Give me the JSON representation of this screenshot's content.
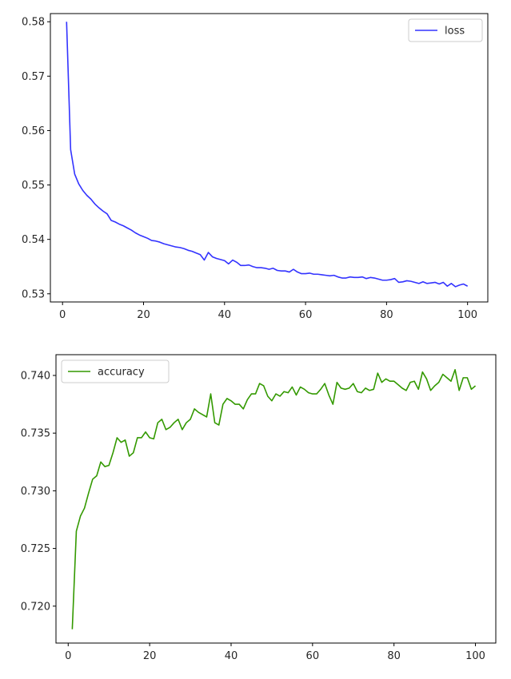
{
  "chart_data": [
    {
      "type": "line",
      "xlim": [
        -3,
        105
      ],
      "ylim": [
        0.5285,
        0.5815
      ],
      "xticks": [
        0,
        20,
        40,
        60,
        80,
        100
      ],
      "xtick_labels": [
        "0",
        "20",
        "40",
        "60",
        "80",
        "100"
      ],
      "yticks": [
        0.53,
        0.54,
        0.55,
        0.56,
        0.57,
        0.58
      ],
      "ytick_labels": [
        "0.53",
        "0.54",
        "0.55",
        "0.56",
        "0.57",
        "0.58"
      ],
      "grid": false,
      "legend": "upper right",
      "series": [
        {
          "name": "loss",
          "color": "#3333ff",
          "x": [
            1,
            2,
            3,
            4,
            5,
            6,
            7,
            8,
            9,
            10,
            11,
            12,
            13,
            14,
            15,
            16,
            17,
            18,
            19,
            20,
            21,
            22,
            23,
            24,
            25,
            26,
            27,
            28,
            29,
            30,
            31,
            32,
            33,
            34,
            35,
            36,
            37,
            38,
            39,
            40,
            41,
            42,
            43,
            44,
            45,
            46,
            47,
            48,
            49,
            50,
            51,
            52,
            53,
            54,
            55,
            56,
            57,
            58,
            59,
            60,
            61,
            62,
            63,
            64,
            65,
            66,
            67,
            68,
            69,
            70,
            71,
            72,
            73,
            74,
            75,
            76,
            77,
            78,
            79,
            80,
            81,
            82,
            83,
            84,
            85,
            86,
            87,
            88,
            89,
            90,
            91,
            92,
            93,
            94,
            95,
            96,
            97,
            98,
            99,
            100
          ],
          "y": [
            0.58,
            0.5565,
            0.552,
            0.5502,
            0.549,
            0.5481,
            0.5474,
            0.5465,
            0.5458,
            0.5452,
            0.5447,
            0.5435,
            0.5432,
            0.5428,
            0.5425,
            0.5421,
            0.5417,
            0.5412,
            0.5408,
            0.5405,
            0.5402,
            0.5398,
            0.5397,
            0.5395,
            0.5392,
            0.539,
            0.5388,
            0.5386,
            0.5385,
            0.5383,
            0.538,
            0.5378,
            0.5375,
            0.5372,
            0.5362,
            0.5376,
            0.5368,
            0.5365,
            0.5363,
            0.5361,
            0.5355,
            0.5362,
            0.5358,
            0.5352,
            0.5352,
            0.5353,
            0.535,
            0.5348,
            0.5348,
            0.5347,
            0.5345,
            0.5347,
            0.5343,
            0.5342,
            0.5342,
            0.534,
            0.5345,
            0.534,
            0.5337,
            0.5337,
            0.5338,
            0.5336,
            0.5336,
            0.5335,
            0.5334,
            0.5333,
            0.5334,
            0.5331,
            0.5329,
            0.5329,
            0.5331,
            0.533,
            0.533,
            0.5331,
            0.5328,
            0.533,
            0.5329,
            0.5327,
            0.5325,
            0.5325,
            0.5326,
            0.5328,
            0.5321,
            0.5322,
            0.5324,
            0.5323,
            0.5321,
            0.5319,
            0.5322,
            0.5319,
            0.532,
            0.5321,
            0.5318,
            0.5321,
            0.5314,
            0.5319,
            0.5313,
            0.5316,
            0.5318,
            0.5314
          ]
        }
      ]
    },
    {
      "type": "line",
      "xlim": [
        -3,
        105
      ],
      "ylim": [
        0.7168,
        0.7418
      ],
      "xticks": [
        0,
        20,
        40,
        60,
        80,
        100
      ],
      "xtick_labels": [
        "0",
        "20",
        "40",
        "60",
        "80",
        "100"
      ],
      "yticks": [
        0.72,
        0.725,
        0.73,
        0.735,
        0.74
      ],
      "ytick_labels": [
        "0.720",
        "0.725",
        "0.730",
        "0.735",
        "0.740"
      ],
      "grid": false,
      "legend": "upper left",
      "series": [
        {
          "name": "accuracy",
          "color": "#339900",
          "x": [
            1,
            2,
            3,
            4,
            5,
            6,
            7,
            8,
            9,
            10,
            11,
            12,
            13,
            14,
            15,
            16,
            17,
            18,
            19,
            20,
            21,
            22,
            23,
            24,
            25,
            26,
            27,
            28,
            29,
            30,
            31,
            32,
            33,
            34,
            35,
            36,
            37,
            38,
            39,
            40,
            41,
            42,
            43,
            44,
            45,
            46,
            47,
            48,
            49,
            50,
            51,
            52,
            53,
            54,
            55,
            56,
            57,
            58,
            59,
            60,
            61,
            62,
            63,
            64,
            65,
            66,
            67,
            68,
            69,
            70,
            71,
            72,
            73,
            74,
            75,
            76,
            77,
            78,
            79,
            80,
            81,
            82,
            83,
            84,
            85,
            86,
            87,
            88,
            89,
            90,
            91,
            92,
            93,
            94,
            95,
            96,
            97,
            98,
            99,
            100
          ],
          "y": [
            0.718,
            0.7265,
            0.7278,
            0.7285,
            0.7298,
            0.731,
            0.7313,
            0.7325,
            0.7321,
            0.7322,
            0.7333,
            0.7346,
            0.7342,
            0.7344,
            0.733,
            0.7333,
            0.7346,
            0.7346,
            0.7351,
            0.7346,
            0.7345,
            0.7359,
            0.7362,
            0.7353,
            0.7355,
            0.7359,
            0.7362,
            0.7353,
            0.7359,
            0.7362,
            0.7371,
            0.7368,
            0.7366,
            0.7364,
            0.7384,
            0.7359,
            0.7357,
            0.7375,
            0.738,
            0.7378,
            0.7375,
            0.7375,
            0.7371,
            0.7379,
            0.7384,
            0.7384,
            0.7393,
            0.7391,
            0.7382,
            0.7378,
            0.7384,
            0.7382,
            0.7386,
            0.7385,
            0.739,
            0.7383,
            0.739,
            0.7388,
            0.7385,
            0.7384,
            0.7384,
            0.7388,
            0.7393,
            0.7383,
            0.7375,
            0.7394,
            0.7389,
            0.7388,
            0.7389,
            0.7393,
            0.7386,
            0.7385,
            0.7389,
            0.7387,
            0.7388,
            0.7402,
            0.7394,
            0.7397,
            0.7395,
            0.7395,
            0.7392,
            0.7389,
            0.7387,
            0.7394,
            0.7395,
            0.7388,
            0.7403,
            0.7397,
            0.7387,
            0.7391,
            0.7394,
            0.7401,
            0.7398,
            0.7395,
            0.7405,
            0.7387,
            0.7398,
            0.7398,
            0.7388,
            0.7391
          ]
        }
      ]
    }
  ]
}
